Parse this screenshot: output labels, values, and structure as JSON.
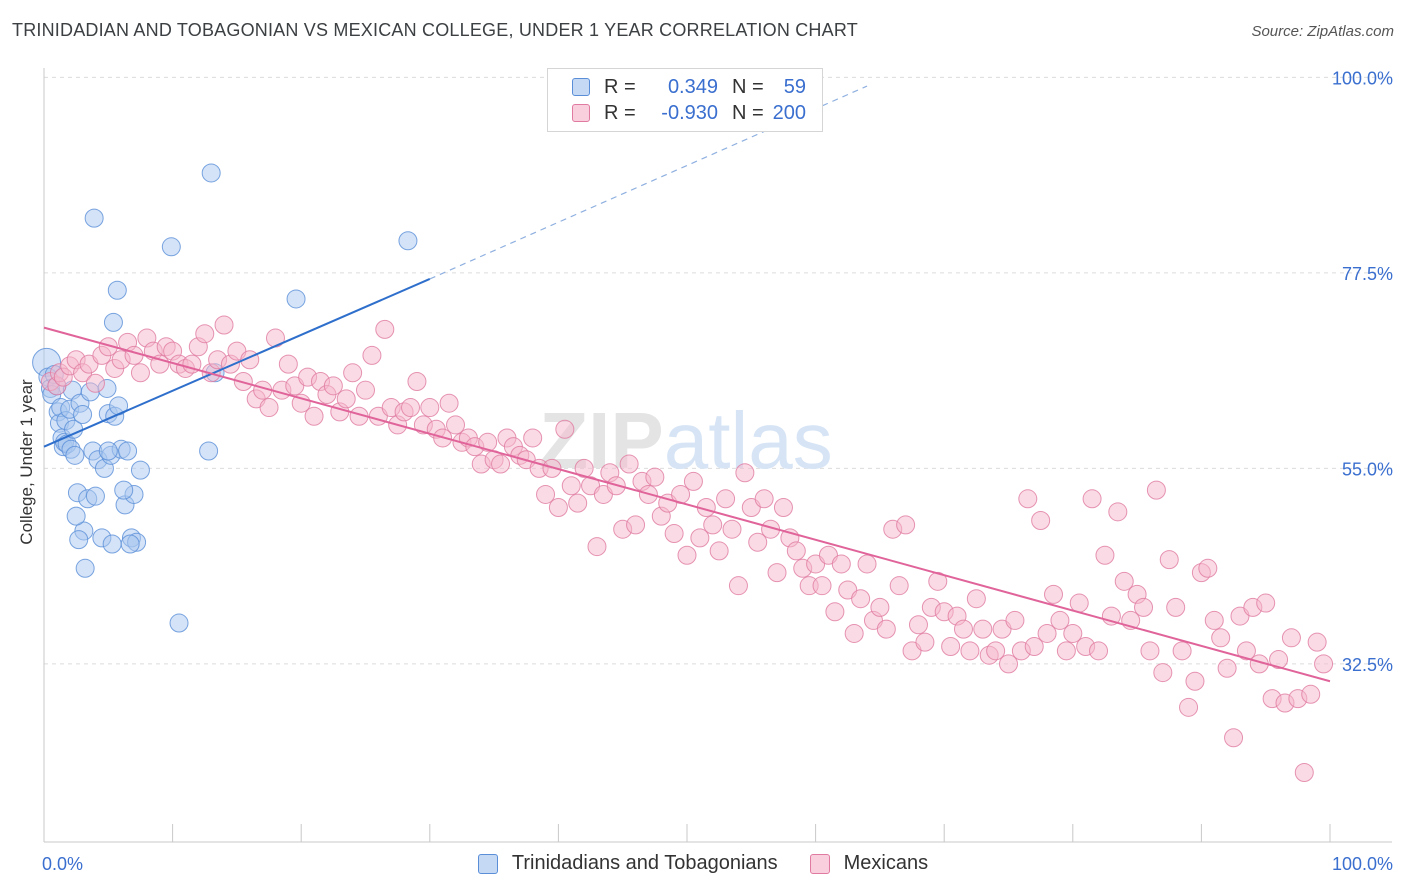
{
  "title": "TRINIDADIAN AND TOBAGONIAN VS MEXICAN COLLEGE, UNDER 1 YEAR CORRELATION CHART",
  "source": "Source: ZipAtlas.com",
  "legend": {
    "r_label": "R =",
    "n_label": "N =",
    "series": [
      {
        "r": "0.349",
        "n": "59"
      },
      {
        "r": "-0.930",
        "n": "200"
      }
    ]
  },
  "colors": {
    "blue_fill": "#a9c8f0",
    "blue_stroke": "#5a8fd8",
    "blue_line": "#2f6fcc",
    "pink_fill": "#f5b8cc",
    "pink_stroke": "#e07aa0",
    "pink_line": "#e0649a",
    "axis_label": "#3a6fcf"
  },
  "chart_data": {
    "type": "scatter",
    "xlabel": "",
    "ylabel": "College, Under 1 year",
    "xlim": [
      0,
      100
    ],
    "ylim": [
      12,
      102
    ],
    "x_tick_labels": [
      "0.0%",
      "100.0%"
    ],
    "y_ticks": [
      32.5,
      55.0,
      77.5,
      100.0
    ],
    "y_tick_labels": [
      "32.5%",
      "55.0%",
      "77.5%",
      "100.0%"
    ],
    "grid": true,
    "watermark": "ZIPatlas",
    "series": [
      {
        "name": "Trinidadians and Tobagonians",
        "color": "blue",
        "trend": {
          "x0": 0,
          "y0": 57.5,
          "x1": 30,
          "y1": 76.8,
          "dashed_to_x": 64,
          "dashed_to_y": 99.0
        },
        "points": [
          [
            0.2,
            67.2
          ],
          [
            0.3,
            65.5
          ],
          [
            0.5,
            64.2
          ],
          [
            0.6,
            63.5
          ],
          [
            0.8,
            65.8
          ],
          [
            1.0,
            64.5
          ],
          [
            1.1,
            61.5
          ],
          [
            1.2,
            60.2
          ],
          [
            1.3,
            62.0
          ],
          [
            1.4,
            58.5
          ],
          [
            1.5,
            57.5
          ],
          [
            1.6,
            58.0
          ],
          [
            1.7,
            60.5
          ],
          [
            1.8,
            57.8
          ],
          [
            2.0,
            61.8
          ],
          [
            2.1,
            57.2
          ],
          [
            2.2,
            64.0
          ],
          [
            2.3,
            59.5
          ],
          [
            2.4,
            56.5
          ],
          [
            2.6,
            52.2
          ],
          [
            2.8,
            62.5
          ],
          [
            3.0,
            61.2
          ],
          [
            3.1,
            47.8
          ],
          [
            3.4,
            51.5
          ],
          [
            3.6,
            63.8
          ],
          [
            3.8,
            57.0
          ],
          [
            4.0,
            51.8
          ],
          [
            4.2,
            56.0
          ],
          [
            4.5,
            47.0
          ],
          [
            4.7,
            55.0
          ],
          [
            4.9,
            64.2
          ],
          [
            5.0,
            61.3
          ],
          [
            5.2,
            56.5
          ],
          [
            5.5,
            61.0
          ],
          [
            5.8,
            62.2
          ],
          [
            6.0,
            57.2
          ],
          [
            6.3,
            50.8
          ],
          [
            6.5,
            57.0
          ],
          [
            7.0,
            52.0
          ],
          [
            3.9,
            83.8
          ],
          [
            3.2,
            43.5
          ],
          [
            2.5,
            49.5
          ],
          [
            2.7,
            46.8
          ],
          [
            6.8,
            47.0
          ],
          [
            7.2,
            46.5
          ],
          [
            6.7,
            46.3
          ],
          [
            5.3,
            46.3
          ],
          [
            5.0,
            57.0
          ],
          [
            6.2,
            52.5
          ],
          [
            7.5,
            54.8
          ],
          [
            5.4,
            71.8
          ],
          [
            5.7,
            75.5
          ],
          [
            9.9,
            80.5
          ],
          [
            10.5,
            37.2
          ],
          [
            12.8,
            57.0
          ],
          [
            13.0,
            89.0
          ],
          [
            13.3,
            66.0
          ],
          [
            19.6,
            74.5
          ],
          [
            28.3,
            81.2
          ]
        ]
      },
      {
        "name": "Mexicans",
        "color": "pink",
        "trend": {
          "x0": 0,
          "y0": 71.2,
          "x1": 100,
          "y1": 30.5
        },
        "points": [
          [
            0.5,
            65.0
          ],
          [
            1.0,
            64.5
          ],
          [
            1.2,
            66.0
          ],
          [
            1.5,
            65.5
          ],
          [
            2.0,
            66.8
          ],
          [
            2.5,
            67.5
          ],
          [
            3.0,
            66.0
          ],
          [
            3.5,
            67.0
          ],
          [
            4.0,
            64.8
          ],
          [
            4.5,
            68.0
          ],
          [
            5.0,
            69.0
          ],
          [
            5.5,
            66.5
          ],
          [
            6.0,
            67.5
          ],
          [
            6.5,
            69.5
          ],
          [
            7.0,
            68.0
          ],
          [
            7.5,
            66.0
          ],
          [
            8.0,
            70.0
          ],
          [
            8.5,
            68.5
          ],
          [
            9.0,
            67.0
          ],
          [
            9.5,
            69.0
          ],
          [
            10.0,
            68.5
          ],
          [
            10.5,
            67.0
          ],
          [
            11.0,
            66.5
          ],
          [
            11.5,
            67.0
          ],
          [
            12.0,
            69.0
          ],
          [
            12.5,
            70.5
          ],
          [
            13.0,
            66.0
          ],
          [
            13.5,
            67.5
          ],
          [
            14.0,
            71.5
          ],
          [
            14.5,
            67.0
          ],
          [
            15.0,
            68.5
          ],
          [
            15.5,
            65.0
          ],
          [
            16.0,
            67.5
          ],
          [
            16.5,
            63.0
          ],
          [
            17.0,
            64.0
          ],
          [
            17.5,
            62.0
          ],
          [
            18.0,
            70.0
          ],
          [
            18.5,
            64.0
          ],
          [
            19.0,
            67.0
          ],
          [
            19.5,
            64.5
          ],
          [
            20.0,
            62.5
          ],
          [
            20.5,
            65.5
          ],
          [
            21.0,
            61.0
          ],
          [
            21.5,
            65.0
          ],
          [
            22.0,
            63.5
          ],
          [
            22.5,
            64.5
          ],
          [
            23.0,
            61.5
          ],
          [
            23.5,
            63.0
          ],
          [
            24.0,
            66.0
          ],
          [
            24.5,
            61.0
          ],
          [
            25.0,
            64.0
          ],
          [
            25.5,
            68.0
          ],
          [
            26.0,
            61.0
          ],
          [
            26.5,
            71.0
          ],
          [
            27.0,
            62.0
          ],
          [
            27.5,
            60.0
          ],
          [
            28.0,
            61.5
          ],
          [
            28.5,
            62.0
          ],
          [
            29.0,
            65.0
          ],
          [
            29.5,
            60.0
          ],
          [
            30.0,
            62.0
          ],
          [
            30.5,
            59.5
          ],
          [
            31.0,
            58.5
          ],
          [
            31.5,
            62.5
          ],
          [
            32.0,
            60.0
          ],
          [
            32.5,
            58.0
          ],
          [
            33.0,
            58.5
          ],
          [
            33.5,
            57.5
          ],
          [
            34.0,
            55.5
          ],
          [
            34.5,
            58.0
          ],
          [
            35.0,
            56.0
          ],
          [
            35.5,
            55.5
          ],
          [
            36.0,
            58.5
          ],
          [
            36.5,
            57.5
          ],
          [
            37.0,
            56.5
          ],
          [
            37.5,
            56.0
          ],
          [
            38.0,
            58.5
          ],
          [
            38.5,
            55.0
          ],
          [
            39.0,
            52.0
          ],
          [
            39.5,
            55.0
          ],
          [
            40.0,
            50.5
          ],
          [
            40.5,
            59.5
          ],
          [
            41.0,
            53.0
          ],
          [
            41.5,
            51.0
          ],
          [
            42.0,
            55.0
          ],
          [
            42.5,
            53.0
          ],
          [
            43.0,
            46.0
          ],
          [
            43.5,
            52.0
          ],
          [
            44.0,
            54.5
          ],
          [
            44.5,
            53.0
          ],
          [
            45.0,
            48.0
          ],
          [
            45.5,
            55.5
          ],
          [
            46.0,
            48.5
          ],
          [
            46.5,
            53.5
          ],
          [
            47.0,
            52.0
          ],
          [
            47.5,
            54.0
          ],
          [
            48.0,
            49.5
          ],
          [
            48.5,
            51.0
          ],
          [
            49.0,
            47.5
          ],
          [
            49.5,
            52.0
          ],
          [
            50.0,
            45.0
          ],
          [
            50.5,
            53.5
          ],
          [
            51.0,
            47.0
          ],
          [
            51.5,
            50.5
          ],
          [
            52.0,
            48.5
          ],
          [
            52.5,
            45.5
          ],
          [
            53.0,
            51.5
          ],
          [
            53.5,
            48.0
          ],
          [
            54.0,
            41.5
          ],
          [
            54.5,
            54.5
          ],
          [
            55.0,
            50.5
          ],
          [
            55.5,
            46.5
          ],
          [
            56.0,
            51.5
          ],
          [
            56.5,
            48.0
          ],
          [
            57.0,
            43.0
          ],
          [
            57.5,
            50.5
          ],
          [
            58.0,
            47.0
          ],
          [
            58.5,
            45.5
          ],
          [
            59.0,
            43.5
          ],
          [
            59.5,
            41.5
          ],
          [
            60.0,
            44.0
          ],
          [
            60.5,
            41.5
          ],
          [
            61.0,
            45.0
          ],
          [
            61.5,
            38.5
          ],
          [
            62.0,
            44.0
          ],
          [
            62.5,
            41.0
          ],
          [
            63.0,
            36.0
          ],
          [
            63.5,
            40.0
          ],
          [
            64.0,
            44.0
          ],
          [
            64.5,
            37.5
          ],
          [
            65.0,
            39.0
          ],
          [
            65.5,
            36.5
          ],
          [
            66.0,
            48.0
          ],
          [
            66.5,
            41.5
          ],
          [
            67.0,
            48.5
          ],
          [
            67.5,
            34.0
          ],
          [
            68.0,
            37.0
          ],
          [
            68.5,
            35.0
          ],
          [
            69.0,
            39.0
          ],
          [
            69.5,
            42.0
          ],
          [
            70.0,
            38.5
          ],
          [
            70.5,
            34.5
          ],
          [
            71.0,
            38.0
          ],
          [
            71.5,
            36.5
          ],
          [
            72.0,
            34.0
          ],
          [
            72.5,
            40.0
          ],
          [
            73.0,
            36.5
          ],
          [
            73.5,
            33.5
          ],
          [
            74.0,
            34.0
          ],
          [
            74.5,
            36.5
          ],
          [
            75.0,
            32.5
          ],
          [
            75.5,
            37.5
          ],
          [
            76.0,
            34.0
          ],
          [
            76.5,
            51.5
          ],
          [
            77.0,
            34.5
          ],
          [
            77.5,
            49.0
          ],
          [
            78.0,
            36.0
          ],
          [
            78.5,
            40.5
          ],
          [
            79.0,
            37.5
          ],
          [
            79.5,
            34.0
          ],
          [
            80.0,
            36.0
          ],
          [
            80.5,
            39.5
          ],
          [
            81.0,
            34.5
          ],
          [
            81.5,
            51.5
          ],
          [
            82.0,
            34.0
          ],
          [
            82.5,
            45.0
          ],
          [
            83.0,
            38.0
          ],
          [
            83.5,
            50.0
          ],
          [
            84.0,
            42.0
          ],
          [
            84.5,
            37.5
          ],
          [
            85.0,
            40.5
          ],
          [
            85.5,
            39.0
          ],
          [
            86.0,
            34.0
          ],
          [
            86.5,
            52.5
          ],
          [
            87.0,
            31.5
          ],
          [
            87.5,
            44.5
          ],
          [
            88.0,
            39.0
          ],
          [
            88.5,
            34.0
          ],
          [
            89.0,
            27.5
          ],
          [
            89.5,
            30.5
          ],
          [
            90.0,
            43.0
          ],
          [
            90.5,
            43.5
          ],
          [
            91.0,
            37.5
          ],
          [
            91.5,
            35.5
          ],
          [
            92.0,
            32.0
          ],
          [
            92.5,
            24.0
          ],
          [
            93.0,
            38.0
          ],
          [
            93.5,
            34.0
          ],
          [
            94.0,
            39.0
          ],
          [
            94.5,
            32.5
          ],
          [
            95.0,
            39.5
          ],
          [
            95.5,
            28.5
          ],
          [
            96.0,
            33.0
          ],
          [
            96.5,
            28.0
          ],
          [
            97.0,
            35.5
          ],
          [
            97.5,
            28.5
          ],
          [
            98.0,
            20.0
          ],
          [
            98.5,
            29.0
          ],
          [
            99.0,
            35.0
          ],
          [
            99.5,
            32.5
          ]
        ]
      }
    ]
  }
}
